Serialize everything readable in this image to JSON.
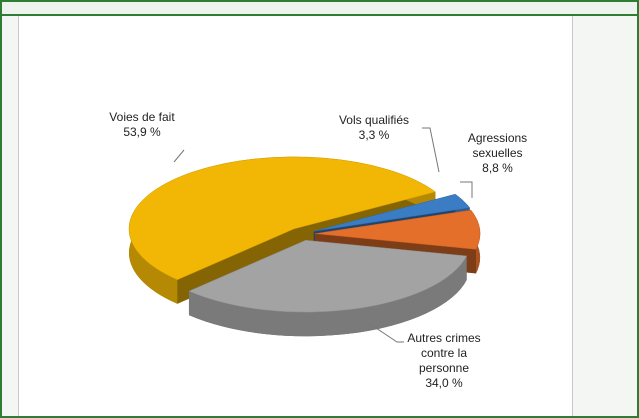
{
  "chart_data": {
    "type": "pie",
    "categories": [
      "Voies de fait",
      "Vols qualifiés",
      "Agressions sexuelles",
      "Autres crimes contre la personne"
    ],
    "values": [
      53.9,
      3.3,
      8.8,
      34.0
    ],
    "value_labels": [
      "53,9 %",
      "3,3 %",
      "8,8 %",
      "34,0 %"
    ],
    "colors": [
      "#f2b705",
      "#3b7dc4",
      "#e46f2a",
      "#a3a3a3"
    ]
  }
}
